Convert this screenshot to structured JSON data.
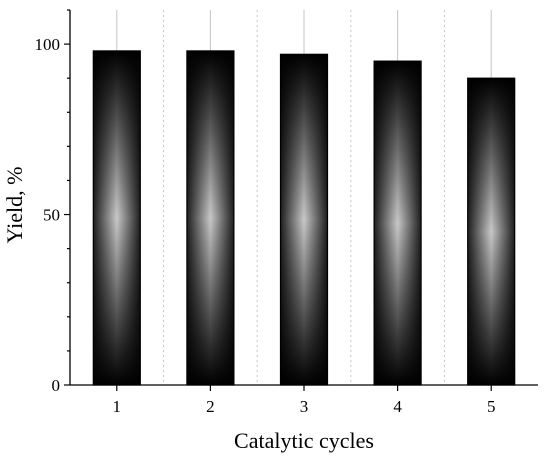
{
  "chart_data": {
    "type": "bar",
    "categories": [
      "1",
      "2",
      "3",
      "4",
      "5"
    ],
    "values": [
      98,
      98,
      97,
      95,
      90
    ],
    "xlabel": "Catalytic cycles",
    "ylabel": "Yield, %",
    "ylim": [
      0,
      110
    ],
    "yticks": [
      0,
      50,
      100
    ],
    "grid": true,
    "bar_color": "#000000",
    "bar_highlight_color": "#c8c8c8"
  }
}
